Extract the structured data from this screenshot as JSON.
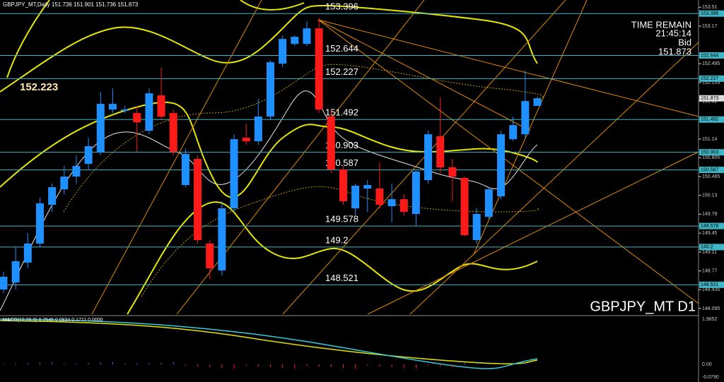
{
  "chart_data": {
    "type": "candlestick",
    "title": "GBPJPY_MT,Daily 151.736 151.901 151.736 151.873",
    "symbol_label": "GBPJPY_MT D1",
    "time_remain": {
      "label": "TIME REMAIN",
      "value": "21:45:14",
      "bid_label": "Bid",
      "bid": 151.873
    },
    "annotation": "152.223",
    "up_color": "#1e90ff",
    "down_color": "#ff1a1a",
    "level_color": "#3fb6c6",
    "open": [
      148.437,
      148.564,
      148.92,
      149.262,
      149.959,
      150.238,
      150.467,
      150.695,
      150.91,
      151.671,
      151.646,
      151.608,
      151.291,
      151.925,
      151.608,
      150.314,
      150.784,
      149.262,
      148.78,
      149.896,
      151.164,
      151.101,
      151.545,
      152.496,
      152.851,
      152.851,
      153.13,
      151.545,
      150.593,
      149.896,
      150.251,
      150.251,
      149.934,
      150.06,
      149.794,
      150.403,
      151.19,
      150.632,
      150.441,
      149.325,
      149.744,
      150.111,
      151.139,
      151.227,
      151.736
    ],
    "high": [
      148.755,
      149.198,
      149.452,
      150.086,
      150.34,
      150.657,
      150.847,
      151.164,
      151.988,
      152.052,
      151.735,
      151.735,
      152.052,
      152.432,
      151.671,
      150.974,
      150.847,
      149.325,
      150.023,
      151.227,
      151.418,
      151.861,
      152.559,
      153.003,
      153.003,
      153.257,
      153.32,
      151.671,
      150.657,
      150.34,
      150.403,
      150.72,
      150.34,
      150.149,
      150.593,
      151.291,
      151.887,
      150.784,
      150.467,
      149.896,
      150.276,
      151.291,
      151.545,
      152.369,
      151.901
    ],
    "low": [
      148.374,
      148.437,
      148.818,
      149.198,
      149.832,
      150.149,
      150.34,
      150.593,
      150.847,
      151.608,
      151.608,
      150.91,
      151.227,
      151.481,
      150.847,
      150.276,
      149.262,
      148.628,
      148.691,
      149.832,
      151.037,
      151.037,
      151.481,
      152.432,
      152.813,
      152.813,
      151.608,
      150.53,
      149.959,
      149.769,
      149.832,
      149.896,
      149.642,
      149.769,
      149.579,
      150.34,
      150.53,
      150.023,
      149.389,
      149.262,
      149.706,
      150.06,
      151.101,
      151.164,
      151.736
    ],
    "close": [
      148.666,
      148.945,
      149.262,
      149.985,
      150.276,
      150.467,
      150.657,
      151.012,
      151.773,
      151.773,
      151.671,
      151.443,
      151.963,
      151.545,
      150.91,
      150.872,
      149.325,
      148.818,
      149.896,
      151.139,
      151.101,
      151.545,
      152.521,
      152.94,
      152.978,
      153.13,
      151.671,
      150.593,
      150.023,
      150.302,
      150.314,
      149.959,
      150.06,
      149.832,
      150.555,
      151.227,
      150.632,
      150.467,
      149.414,
      149.794,
      150.238,
      151.227,
      151.392,
      151.823,
      151.873
    ],
    "levels": [
      153.396,
      152.644,
      152.227,
      151.492,
      150.903,
      150.587,
      149.578,
      149.2,
      148.521
    ],
    "ylim": [
      147.98,
      153.64
    ],
    "yticks": [
      153.51,
      153.17,
      152.495,
      152.155,
      151.82,
      151.14,
      150.805,
      150.465,
      150.13,
      149.79,
      149.45,
      149.11,
      148.77,
      148.435,
      148.095
    ],
    "macd": {
      "title": "MACD(12,26,9) 0.2545 0.0834 0.1711 0.0000",
      "ticks": [
        "1.9652",
        "0.00",
        "-0.0790"
      ]
    }
  }
}
